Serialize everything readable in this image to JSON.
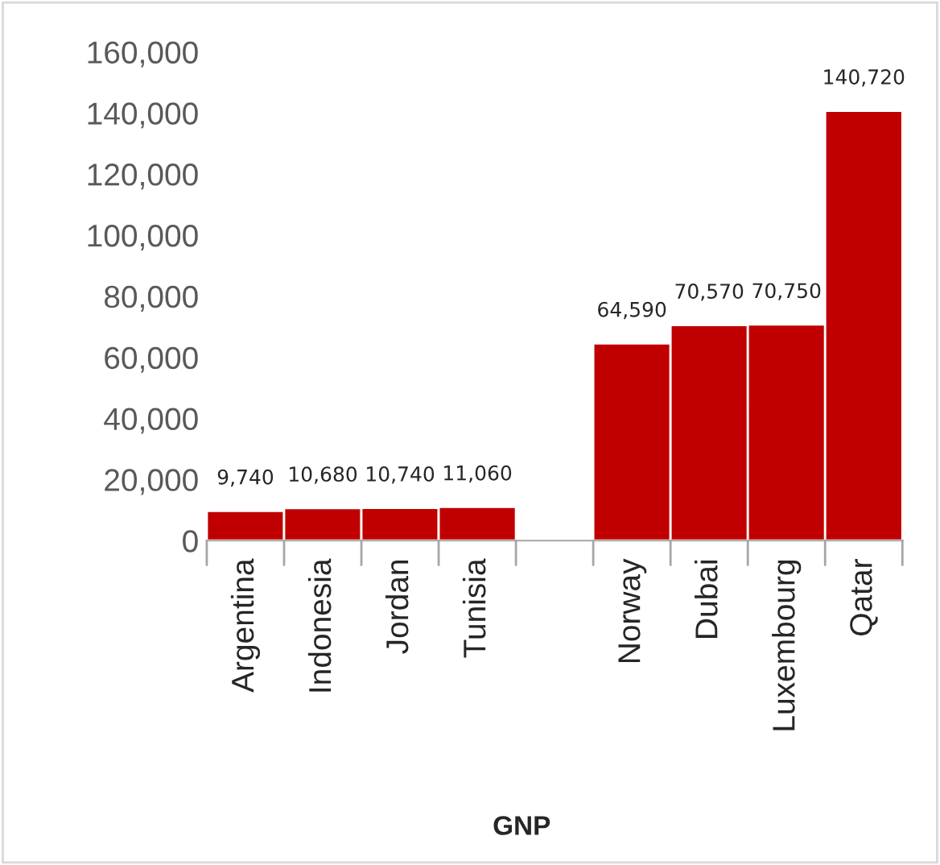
{
  "chart_data": {
    "type": "bar",
    "xlabel": "GNP",
    "categories": [
      "Argentina",
      "Indonesia",
      "Jordan",
      "Tunisia",
      null,
      "Norway",
      "Dubai",
      "Luxembourg",
      "Qatar"
    ],
    "values": [
      9740,
      10680,
      10740,
      11060,
      null,
      64590,
      70570,
      70750,
      140720
    ],
    "value_labels": [
      "9,740",
      "10,680",
      "10,740",
      "11,060",
      null,
      "64,590",
      "70,570",
      "70,750",
      "140,720"
    ],
    "color": "#c00000",
    "ylim": [
      0,
      160000
    ],
    "yticks": [
      0,
      {
        "value": 20000,
        "label": "20,000"
      },
      {
        "value": 40000,
        "label": "40,000"
      },
      {
        "value": 60000,
        "label": "60,000"
      },
      {
        "value": 80000,
        "label": "80,000"
      },
      {
        "value": 100000,
        "label": "100,000"
      },
      {
        "value": 120000,
        "label": "120,000"
      },
      {
        "value": 140000,
        "label": "140,000"
      },
      {
        "value": 160000,
        "label": "160,000"
      }
    ],
    "grid": false,
    "legend": false
  }
}
